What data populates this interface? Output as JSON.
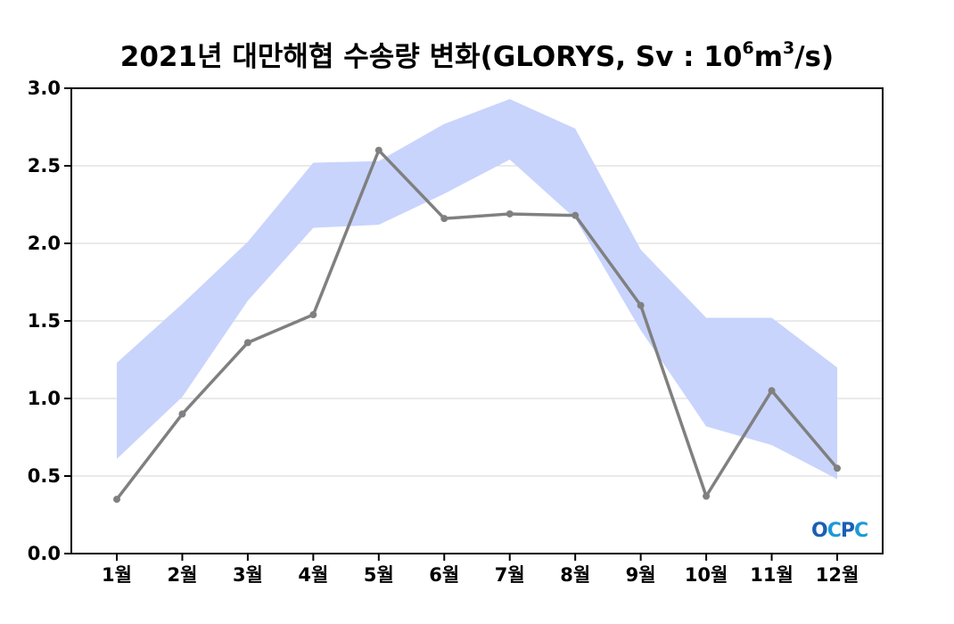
{
  "chart_data": {
    "type": "line",
    "title_main": "2021년 대만해협 수송량 변화(GLORYS, Sv : 10",
    "title_sup1": "6",
    "title_mid": "m",
    "title_sup2": "3",
    "title_end": "/s)",
    "categories": [
      "1월",
      "2월",
      "3월",
      "4월",
      "5월",
      "6월",
      "7월",
      "8월",
      "9월",
      "10월",
      "11월",
      "12월"
    ],
    "series": [
      {
        "values": [
          0.35,
          0.9,
          1.36,
          1.54,
          2.6,
          2.16,
          2.19,
          2.18,
          1.6,
          0.37,
          1.05,
          0.55
        ],
        "color": "#808080"
      }
    ],
    "band": {
      "upper": [
        1.23,
        1.61,
        2.01,
        2.52,
        2.53,
        2.77,
        2.93,
        2.74,
        1.96,
        1.52,
        1.52,
        1.2
      ],
      "lower": [
        0.61,
        1.01,
        1.63,
        2.1,
        2.12,
        2.32,
        2.54,
        2.16,
        1.44,
        0.82,
        0.7,
        0.48
      ],
      "color": "#c8d4fc"
    },
    "yticks": [
      "0.0",
      "0.5",
      "1.0",
      "1.5",
      "2.0",
      "2.5",
      "3.0"
    ],
    "ylim": [
      0,
      3.0
    ],
    "grid": true,
    "logo_text": "OCPC"
  }
}
